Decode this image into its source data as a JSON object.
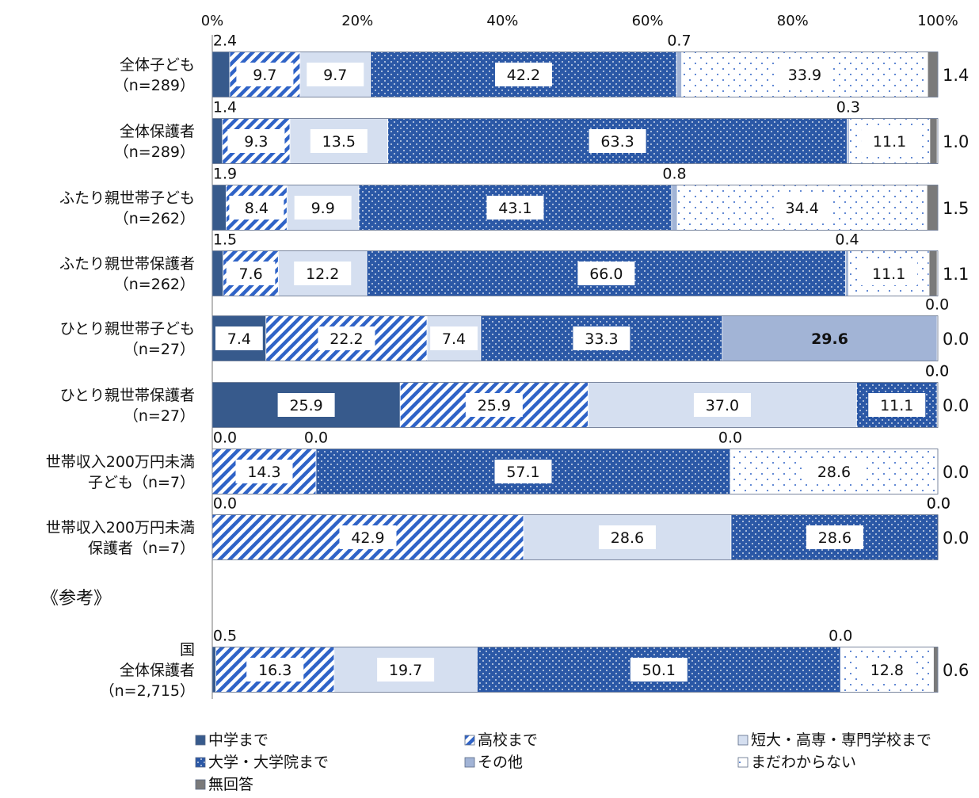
{
  "chart_data": {
    "type": "bar",
    "orientation": "horizontal-stacked-100",
    "xlim": [
      0,
      100
    ],
    "x_ticks": [
      "0%",
      "20%",
      "40%",
      "60%",
      "80%",
      "100%"
    ],
    "grid": false,
    "legend_placement": "bottom",
    "series": [
      {
        "name": "中学まで",
        "color": "#375a8c",
        "pattern": "solid"
      },
      {
        "name": "高校まで",
        "color": "#2f63c7",
        "pattern": "diagonal-stripes"
      },
      {
        "name": "短大・高専・専門学校まで",
        "color": "#d5dff0",
        "pattern": "solid"
      },
      {
        "name": "大学・大学院まで",
        "color": "#2b58a6",
        "pattern": "dots"
      },
      {
        "name": "その他",
        "color": "#a2b4d6",
        "pattern": "solid"
      },
      {
        "name": "まだわからない",
        "color": "#ffffff",
        "pattern": "sparse-dots"
      },
      {
        "name": "無回答",
        "color": "#7a7a7a",
        "pattern": "solid"
      }
    ],
    "rows": [
      {
        "label": [
          "全体子ども",
          "（n=289）"
        ],
        "values": [
          2.4,
          9.7,
          9.7,
          42.2,
          0.7,
          33.9,
          1.4
        ]
      },
      {
        "label": [
          "全体保護者",
          "（n=289）"
        ],
        "values": [
          1.4,
          9.3,
          13.5,
          63.3,
          0.3,
          11.1,
          1.0
        ]
      },
      {
        "label": [
          "ふたり親世帯子ども",
          "（n=262）"
        ],
        "values": [
          1.9,
          8.4,
          9.9,
          43.1,
          0.8,
          34.4,
          1.5
        ]
      },
      {
        "label": [
          "ふたり親世帯保護者",
          "（n=262）"
        ],
        "values": [
          1.5,
          7.6,
          12.2,
          66.0,
          0.4,
          11.1,
          1.1
        ]
      },
      {
        "label": [
          "ひとり親世帯子ども",
          "（n=27）"
        ],
        "values": [
          7.4,
          22.2,
          7.4,
          33.3,
          29.6,
          0.0,
          0.0
        ]
      },
      {
        "label": [
          "ひとり親世帯保護者",
          "（n=27）"
        ],
        "values": [
          25.9,
          25.9,
          37.0,
          11.1,
          0.0,
          0.0,
          0.0
        ]
      },
      {
        "label": [
          "世帯収入200万円未満",
          "子ども（n=7）"
        ],
        "values": [
          0.0,
          14.3,
          0.0,
          57.1,
          0.0,
          28.6,
          0.0
        ]
      },
      {
        "label": [
          "世帯収入200万円未満",
          "保護者（n=7）"
        ],
        "values": [
          0.0,
          42.9,
          28.6,
          28.6,
          0.0,
          0.0,
          0.0
        ]
      },
      {
        "label": [
          "国",
          "全体保護者",
          "（n=2,715）"
        ],
        "values": [
          0.5,
          16.3,
          19.7,
          50.1,
          0.0,
          12.8,
          0.6
        ]
      }
    ],
    "reference_heading": "《参考》"
  }
}
